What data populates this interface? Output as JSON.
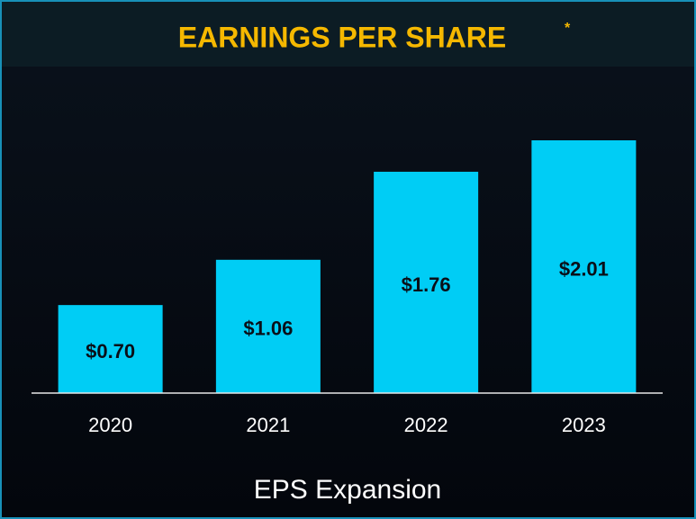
{
  "chart_data": {
    "type": "bar",
    "title": "EARNINGS PER SHARE",
    "title_marker": "*",
    "categories": [
      "2020",
      "2021",
      "2022",
      "2023"
    ],
    "values": [
      0.7,
      1.06,
      1.76,
      2.01
    ],
    "value_labels": [
      "$0.70",
      "$1.06",
      "$1.76",
      "$2.01"
    ],
    "color": "#00cdf5",
    "x_label": "EPS Expansion"
  }
}
